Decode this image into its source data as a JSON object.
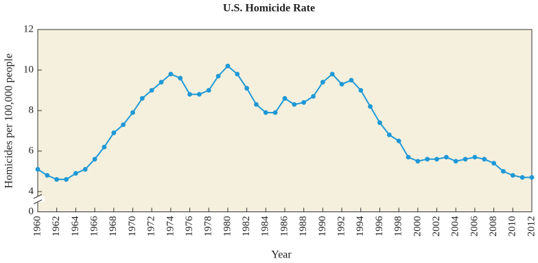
{
  "chart_data": {
    "type": "line",
    "title": "U.S. Homicide Rate",
    "x_label": "Year",
    "y_label": "Homicides per 100,000 people",
    "x": [
      1960,
      1961,
      1962,
      1963,
      1964,
      1965,
      1966,
      1967,
      1968,
      1969,
      1970,
      1971,
      1972,
      1973,
      1974,
      1975,
      1976,
      1977,
      1978,
      1979,
      1980,
      1981,
      1982,
      1983,
      1984,
      1985,
      1986,
      1987,
      1988,
      1989,
      1990,
      1991,
      1992,
      1993,
      1994,
      1995,
      1996,
      1997,
      1998,
      1999,
      2000,
      2001,
      2002,
      2003,
      2004,
      2005,
      2006,
      2007,
      2008,
      2009,
      2010,
      2011,
      2012
    ],
    "values": [
      5.1,
      4.8,
      4.6,
      4.6,
      4.9,
      5.1,
      5.6,
      6.2,
      6.9,
      7.3,
      7.9,
      8.6,
      9.0,
      9.4,
      9.8,
      9.6,
      8.8,
      8.8,
      9.0,
      9.7,
      10.2,
      9.8,
      9.1,
      8.3,
      7.9,
      7.9,
      8.6,
      8.3,
      8.4,
      8.7,
      9.4,
      9.8,
      9.3,
      9.5,
      9.0,
      8.2,
      7.4,
      6.8,
      6.5,
      5.7,
      5.5,
      5.6,
      5.6,
      5.7,
      5.5,
      5.6,
      5.7,
      5.6,
      5.4,
      5.0,
      4.8,
      4.7,
      4.7
    ],
    "color": "#1f98d6",
    "xlim": [
      1960,
      2012
    ],
    "xticks": [
      1960,
      1962,
      1964,
      1966,
      1968,
      1970,
      1972,
      1974,
      1976,
      1978,
      1980,
      1982,
      1984,
      1986,
      1988,
      1990,
      1992,
      1994,
      1996,
      1998,
      2000,
      2002,
      2004,
      2006,
      2008,
      2010,
      2012
    ],
    "ylim": [
      0,
      12
    ],
    "yticks": [
      0,
      4,
      6,
      8,
      10,
      12
    ],
    "y_axis_break": [
      0,
      3
    ],
    "plot_background": "#f5f0de"
  }
}
